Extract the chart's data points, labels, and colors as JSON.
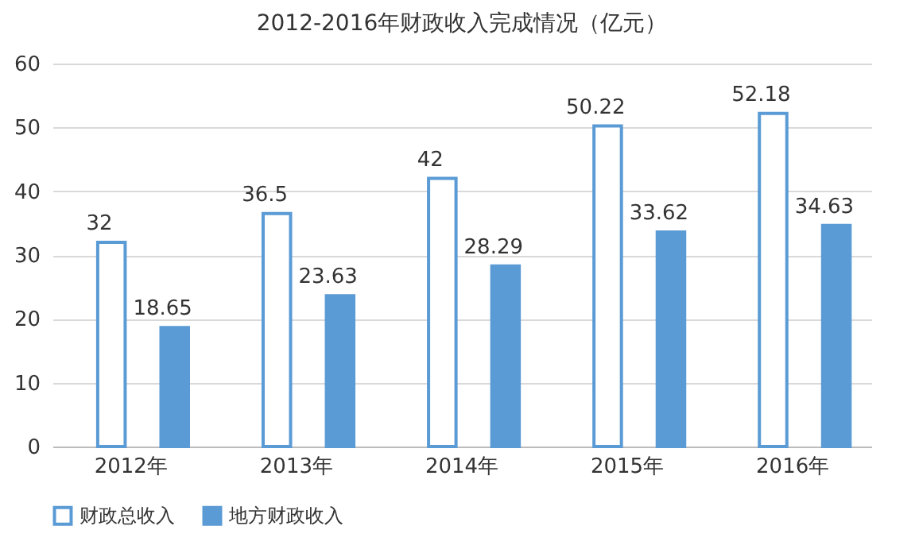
{
  "chart_data": {
    "type": "bar",
    "title": "2012-2016年财政收入完成情况（亿元）",
    "categories": [
      "2012年",
      "2013年",
      "2014年",
      "2015年",
      "2016年"
    ],
    "series": [
      {
        "name": "财政总收入",
        "color": "#5b9bd5",
        "values": [
          32,
          36.5,
          42,
          50.22,
          52.18
        ]
      },
      {
        "name": "地方财政收入",
        "color": "#5b9bd5",
        "values": [
          18.65,
          23.63,
          28.29,
          33.62,
          34.63
        ]
      }
    ],
    "ylim": [
      0,
      60
    ],
    "yticks": [
      0,
      10,
      20,
      30,
      40,
      50,
      60
    ],
    "grid": "y",
    "legend": "bottom",
    "data_labels": true
  }
}
